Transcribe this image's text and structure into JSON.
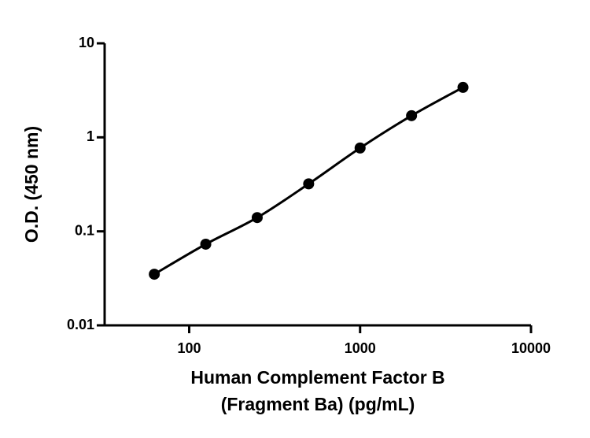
{
  "chart_data": {
    "type": "scatter",
    "x_label": [
      "Human Complement Factor B",
      "(Fragment Ba) (pg/mL)"
    ],
    "y_label": "O.D. (450 nm)",
    "x": [
      62.5,
      125,
      250,
      500,
      1000,
      2000,
      4000
    ],
    "values": [
      0.035,
      0.073,
      0.14,
      0.32,
      0.77,
      1.7,
      3.4
    ],
    "color": "#000000",
    "fit_line": true,
    "xlog": true,
    "ylog": true,
    "xlim": [
      32,
      10000
    ],
    "ylim": [
      0.01,
      10
    ],
    "xticks": [
      100,
      1000,
      10000
    ],
    "yticks": [
      0.01,
      0.1,
      1,
      10
    ]
  }
}
